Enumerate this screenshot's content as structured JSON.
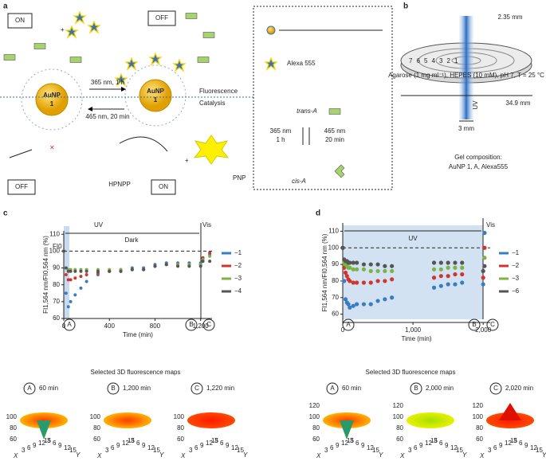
{
  "panel_a": {
    "letter": "a",
    "on_top": "ON",
    "off_top": "OFF",
    "forward": "365 nm, 1 h",
    "backward": "465 nm, 20 min",
    "np_name": "AuNP",
    "np_number": "1",
    "np_name_2": "AuNP",
    "np_number_2": "1",
    "fluorescence": "Fluorescence",
    "catalysis": "Catalysis",
    "substrate": "HPNPP",
    "product": "PNP",
    "off_bottom": "OFF",
    "on_bottom": "ON",
    "legend_dye": "Alexa 555",
    "legend_trans": "trans-A",
    "legend_fwd_nm": "365 nm",
    "legend_fwd_t": "1 h",
    "legend_back_nm": "465 nm",
    "legend_back_t": "20 min",
    "legend_cis": "cis-A"
  },
  "panel_b": {
    "letter": "b",
    "spacing": "2.35 mm",
    "diameter": "34.9 mm",
    "beam": "3 mm",
    "uv": "UV",
    "gel": "Agarose (1 mg ml⁻¹), HEPES (10 mM), pH 7, T = 25 °C",
    "rings": [
      "7",
      "6",
      "5",
      "4",
      "3",
      "2",
      "1"
    ],
    "composition_title": "Gel composition:",
    "composition": "AuNP 1, A, Alexa555"
  },
  "chart_data": [
    {
      "type": "scatter",
      "letter": "c",
      "x_label": "Time (min)",
      "y_label": "FI1,564 nm/FI0,564 nm (%)",
      "xlim": [
        0,
        1300
      ],
      "xticks": [
        0,
        400,
        800,
        {
          "value": 1200,
          "label": "1,200"
        }
      ],
      "ylim": [
        60,
        112
      ],
      "yticks": [
        60,
        70,
        80,
        90,
        100,
        110
      ],
      "reference_line": 100,
      "annotations": {
        "uv": "UV",
        "dark": "Dark",
        "vis": "Vis",
        "fi0": "FI0",
        "a": "A",
        "b": "B",
        "c": "C"
      },
      "x": [
        0,
        20,
        40,
        60,
        100,
        150,
        200,
        300,
        400,
        500,
        600,
        700,
        800,
        900,
        1000,
        1100,
        1200,
        1220,
        1280
      ],
      "series": [
        {
          "name": "−1",
          "color": "#3a7cc2",
          "values": [
            100,
            75,
            67,
            70,
            74,
            78,
            82,
            86,
            88,
            89,
            90,
            90,
            92,
            93,
            93,
            93,
            93,
            96,
            98
          ]
        },
        {
          "name": "−2",
          "color": "#d0352e",
          "values": [
            100,
            86,
            83,
            83,
            84,
            85,
            86,
            87,
            88,
            88,
            89,
            89,
            91,
            92,
            92,
            92,
            92,
            96,
            99
          ]
        },
        {
          "name": "−3",
          "color": "#7cb342",
          "values": [
            100,
            90,
            89,
            89,
            89,
            89,
            89,
            89,
            89,
            89,
            89,
            89,
            91,
            92,
            92,
            92,
            92,
            95,
            97
          ]
        },
        {
          "name": "−4",
          "color": "#555555",
          "values": [
            100,
            90,
            88,
            88,
            88,
            88,
            88,
            88,
            88,
            88,
            89,
            89,
            91,
            92,
            91,
            91,
            91,
            94,
            94
          ]
        }
      ]
    },
    {
      "type": "scatter",
      "letter": "d",
      "x_label": "Time (min)",
      "y_label": "FI1,564 nm/FI0,564 nm (%)",
      "xlim": [
        0,
        2100
      ],
      "xticks": [
        0,
        {
          "value": 1000,
          "label": "1,000"
        },
        {
          "value": 2000,
          "label": "2,000"
        }
      ],
      "ylim": [
        55,
        115
      ],
      "yticks": [
        60,
        70,
        80,
        90,
        100,
        110
      ],
      "reference_line": 100,
      "annotations": {
        "uv": "UV",
        "vis": "Vis",
        "a": "A",
        "b": "B",
        "c": "C"
      },
      "x": [
        0,
        20,
        40,
        60,
        80,
        100,
        150,
        200,
        300,
        400,
        500,
        600,
        700,
        1300,
        1400,
        1500,
        1600,
        1700,
        2000,
        2020
      ],
      "series": [
        {
          "name": "−1",
          "color": "#3a7cc2",
          "values": [
            100,
            80,
            69,
            67,
            66,
            64,
            65,
            66,
            66,
            66,
            68,
            69,
            70,
            76,
            77,
            78,
            78,
            79,
            78,
            109
          ]
        },
        {
          "name": "−2",
          "color": "#d0352e",
          "values": [
            100,
            88,
            85,
            83,
            81,
            80,
            79,
            79,
            79,
            79,
            80,
            80,
            81,
            82,
            83,
            83,
            84,
            84,
            82,
            100
          ]
        },
        {
          "name": "−3",
          "color": "#7cb342",
          "values": [
            100,
            91,
            90,
            89,
            88,
            88,
            87,
            87,
            87,
            86,
            86,
            86,
            86,
            87,
            87,
            88,
            88,
            88,
            86,
            94
          ]
        },
        {
          "name": "−6",
          "color": "#555555",
          "values": [
            100,
            93,
            92,
            92,
            91,
            91,
            91,
            91,
            90,
            90,
            90,
            89,
            89,
            91,
            91,
            91,
            91,
            91,
            86,
            89
          ]
        }
      ]
    }
  ],
  "maps": [
    {
      "title": "Selected 3D fluorescence maps",
      "items": [
        {
          "letter": "A",
          "time": "60 min"
        },
        {
          "letter": "B",
          "time": "1,200 min"
        },
        {
          "letter": "C",
          "time": "1,220 min"
        }
      ],
      "zticks": [
        60,
        80,
        100
      ],
      "xyticks": [
        3,
        6,
        9,
        12,
        15
      ],
      "x_label": "X",
      "y_label": "Y"
    },
    {
      "title": "Selected 3D fluorescence maps",
      "items": [
        {
          "letter": "A",
          "time": "60 min"
        },
        {
          "letter": "B",
          "time": "2,000 min"
        },
        {
          "letter": "C",
          "time": "2,020 min"
        }
      ],
      "zticks": [
        60,
        80,
        100,
        120
      ],
      "xyticks": [
        3,
        6,
        9,
        12,
        15
      ],
      "x_label": "X",
      "y_label": "Y"
    }
  ]
}
